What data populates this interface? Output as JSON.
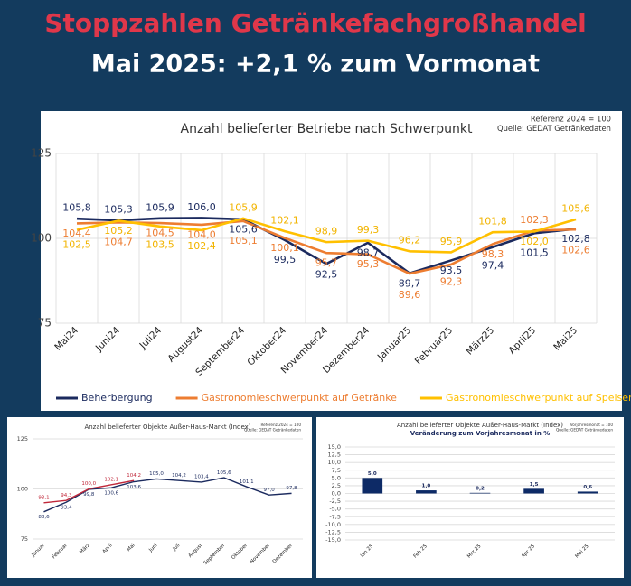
{
  "header": {
    "title": "Stoppzahlen Getränkefachgroßhandel",
    "subtitle": "Mai 2025: +2,1 % zum Vormonat"
  },
  "chart_data": [
    {
      "type": "line",
      "title": "Anzahl belieferter Betriebe nach Schwerpunkt",
      "annotations": [
        "Referenz 2024 = 100",
        "Quelle: GEDAT Getränkedaten"
      ],
      "categories": [
        "Mai24",
        "Juni24",
        "Juli24",
        "August24",
        "September24",
        "Oktober24",
        "November24",
        "Dezember24",
        "Januar25",
        "Februar25",
        "März25",
        "April25",
        "Mai25"
      ],
      "series": [
        {
          "name": "Beherbergung",
          "color": "#1b2a5e",
          "values": [
            105.8,
            105.3,
            105.9,
            106.0,
            105.6,
            99.5,
            92.5,
            98.7,
            89.7,
            93.5,
            97.4,
            101.5,
            102.8
          ],
          "value_labels": [
            "105,8",
            "105,3",
            "105,9",
            "106,0",
            "105,6",
            "99,5",
            "92,5",
            "98,7",
            "89,7",
            "93,5",
            "97,4",
            "101,5",
            "102,8"
          ]
        },
        {
          "name": "Gastronomieschwerpunkt auf Getränke",
          "color": "#ed7d31",
          "values": [
            104.4,
            104.7,
            104.5,
            104.0,
            105.1,
            100.1,
            95.7,
            95.3,
            89.6,
            92.3,
            98.3,
            102.3,
            102.6
          ],
          "value_labels": [
            "104,4",
            "104,7",
            "104,5",
            "104,0",
            "105,1",
            "100,1",
            "95,7",
            "95,3",
            "89,6",
            "92,3",
            "98,3",
            "102,3",
            "102,6"
          ]
        },
        {
          "name": "Gastronomieschwerpunkt auf Speisen",
          "color": "#ffc000",
          "values": [
            102.5,
            105.2,
            103.5,
            102.4,
            105.9,
            102.1,
            98.9,
            99.3,
            96.2,
            95.9,
            101.8,
            102.0,
            105.6
          ],
          "value_labels": [
            "102,5",
            "105,2",
            "103,5",
            "102,4",
            "105,9",
            "102,1",
            "98,9",
            "99,3",
            "96,2",
            "95,9",
            "101,8",
            "102,0",
            "105,6"
          ]
        }
      ],
      "ylim": [
        75,
        125
      ],
      "yticks": [
        75,
        100,
        125
      ],
      "grid": true,
      "legend": "bottom"
    },
    {
      "type": "line",
      "title": "Anzahl belieferter Objekte Außer-Haus-Markt (Index)",
      "annotations": [
        "Referenz 2024 = 100",
        "Quelle: GEDAT Getränkedaten"
      ],
      "categories": [
        "Januar",
        "Februar",
        "März",
        "April",
        "Mai",
        "Juni",
        "Juli",
        "August",
        "September",
        "Oktober",
        "November",
        "Dezember"
      ],
      "series": [
        {
          "color": "#1b2a5e",
          "values": [
            88.6,
            93.4,
            99.8,
            100.6,
            103.6,
            105.0,
            104.2,
            103.4,
            105.6,
            101.1,
            97.0,
            97.8
          ],
          "value_labels": [
            "88,6",
            "93,4",
            "99,8",
            "100,6",
            "103,6",
            "105,0",
            "104,2",
            "103,4",
            "105,6",
            "101,1",
            "97,0",
            "97,8"
          ]
        },
        {
          "color": "#c0283a",
          "values": [
            93.1,
            94.3,
            100.0,
            102.1,
            104.2,
            null,
            null,
            null,
            null,
            null,
            null,
            null
          ],
          "value_labels": [
            "93,1",
            "94,3",
            "100,0",
            "102,1",
            "104,2",
            null,
            null,
            null,
            null,
            null,
            null,
            null
          ]
        }
      ],
      "ylim": [
        75,
        125
      ],
      "yticks": [
        75,
        100,
        125
      ],
      "grid": true
    },
    {
      "type": "bar",
      "title": "Anzahl belieferter Objekte Außer-Haus-Markt (Index)",
      "subtitle": "Veränderung zum Vorjahresmonat in %",
      "annotations": [
        "Vorjahresmonat = 100",
        "Quelle: GEDAT Getränkedaten"
      ],
      "categories": [
        "Jan 25",
        "Feb 25",
        "Mrz 25",
        "Apr 25",
        "Mai 25"
      ],
      "values": [
        5.0,
        1.0,
        0.2,
        1.5,
        0.6
      ],
      "value_labels": [
        "5,0",
        "1,0",
        "0,2",
        "1,5",
        "0,6"
      ],
      "color": "#0d2a66",
      "ylim": [
        -15,
        15
      ],
      "yticks": [
        {
          "value": -15,
          "label": "-15,0"
        },
        {
          "value": -12.5,
          "label": "-12,5"
        },
        {
          "value": -10,
          "label": "-10,0"
        },
        {
          "value": -7.5,
          "label": "-7,5"
        },
        {
          "value": -5,
          "label": "-5,0"
        },
        {
          "value": -2.5,
          "label": "-2,5"
        },
        {
          "value": 0,
          "label": "0,0"
        },
        {
          "value": 2.5,
          "label": "2,5"
        },
        {
          "value": 5,
          "label": "5,0"
        },
        {
          "value": 7.5,
          "label": "7,5"
        },
        {
          "value": 10,
          "label": "10,0"
        },
        {
          "value": 12.5,
          "label": "12,5"
        },
        {
          "value": 15,
          "label": "15,0"
        }
      ],
      "grid": true
    }
  ]
}
